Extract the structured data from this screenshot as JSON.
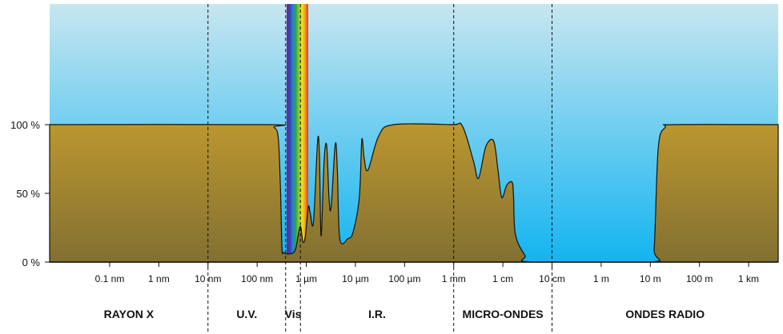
{
  "figure": {
    "colors": {
      "sky_top": "#c7e6f0",
      "sky_bottom": "#13b4f0",
      "ground_top": "#bc9730",
      "ground_bottom": "#827031",
      "outline": "#111111",
      "divider": "#111111"
    },
    "visible_spectrum_colors": [
      "#6a2c8c",
      "#3b3fb3",
      "#2a7fd0",
      "#27a84a",
      "#9cc62b",
      "#f2e221",
      "#f39a21",
      "#e8322a"
    ]
  },
  "chart_data": {
    "type": "area",
    "title": "",
    "xlabel": "",
    "ylabel": "",
    "x_scale": "log",
    "x_unit": "m",
    "ylim": [
      0,
      100
    ],
    "yticks": [
      {
        "value": 0,
        "label": "0 %"
      },
      {
        "value": 50,
        "label": "50 %"
      },
      {
        "value": 100,
        "label": "100 %"
      }
    ],
    "xticks": [
      {
        "value": 1e-10,
        "label": "0.1 nm"
      },
      {
        "value": 1e-09,
        "label": "1 nm"
      },
      {
        "value": 1e-08,
        "label": "10 nm"
      },
      {
        "value": 1e-07,
        "label": "100 nm"
      },
      {
        "value": 1e-06,
        "label": "1 µm"
      },
      {
        "value": 1e-05,
        "label": "10 µm"
      },
      {
        "value": 0.0001,
        "label": "100 µm"
      },
      {
        "value": 0.001,
        "label": "1 mm"
      },
      {
        "value": 0.01,
        "label": "1 cm"
      },
      {
        "value": 0.1,
        "label": "10 cm"
      },
      {
        "value": 1,
        "label": "1 m"
      },
      {
        "value": 10,
        "label": "10 m"
      },
      {
        "value": 100,
        "label": "100 m"
      },
      {
        "value": 1000,
        "label": "1 km"
      }
    ],
    "regions": [
      {
        "label": "RAYON X",
        "from": 6e-12,
        "to": 1e-08
      },
      {
        "label": "U.V.",
        "from": 1e-08,
        "to": 3.8e-07
      },
      {
        "label": "Vis",
        "from": 3.8e-07,
        "to": 7.6e-07
      },
      {
        "label": "I.R.",
        "from": 7.6e-07,
        "to": 0.001
      },
      {
        "label": "MICRO-ONDES",
        "from": 0.001,
        "to": 0.1
      },
      {
        "label": "ONDES RADIO",
        "from": 0.1,
        "to": 4000
      }
    ],
    "series": [
      {
        "kind": "atmospheric opacity",
        "points": [
          [
            6e-12,
            100
          ],
          [
            1.6e-07,
            100
          ],
          [
            2.2e-07,
            98
          ],
          [
            2.7e-07,
            90
          ],
          [
            3e-07,
            50
          ],
          [
            3.2e-07,
            10
          ],
          [
            3.5e-07,
            7
          ],
          [
            4.5e-07,
            6
          ],
          [
            6e-07,
            9
          ],
          [
            7.5e-07,
            26
          ],
          [
            8.5e-07,
            15
          ],
          [
            9.5e-07,
            18
          ],
          [
            1.1e-06,
            40
          ],
          [
            1.2e-06,
            36
          ],
          [
            1.4e-06,
            29
          ],
          [
            1.7e-06,
            88
          ],
          [
            1.85e-06,
            78
          ],
          [
            2e-06,
            19
          ],
          [
            2.3e-06,
            73
          ],
          [
            2.6e-06,
            85
          ],
          [
            2.9e-06,
            47
          ],
          [
            3.2e-06,
            40
          ],
          [
            3.9e-06,
            86
          ],
          [
            4.3e-06,
            66
          ],
          [
            4.8e-06,
            17
          ],
          [
            7e-06,
            17
          ],
          [
            9e-06,
            22
          ],
          [
            1.2e-05,
            47
          ],
          [
            1.35e-05,
            89
          ],
          [
            1.5e-05,
            76
          ],
          [
            1.8e-05,
            67
          ],
          [
            3e-05,
            92
          ],
          [
            6e-05,
            100
          ],
          [
            0.0009,
            100
          ],
          [
            0.0015,
            99
          ],
          [
            0.0025,
            74
          ],
          [
            0.0032,
            61
          ],
          [
            0.0045,
            84
          ],
          [
            0.0065,
            88
          ],
          [
            0.008,
            66
          ],
          [
            0.0095,
            47
          ],
          [
            0.012,
            56
          ],
          [
            0.0155,
            58
          ],
          [
            0.0165,
            47
          ],
          [
            0.018,
            20
          ],
          [
            0.028,
            5
          ],
          [
            0.04,
            0
          ],
          [
            10,
            0
          ],
          [
            12,
            10
          ],
          [
            14.5,
            83
          ],
          [
            20,
            98
          ],
          [
            30,
            100
          ],
          [
            4000,
            100
          ]
        ]
      }
    ]
  }
}
